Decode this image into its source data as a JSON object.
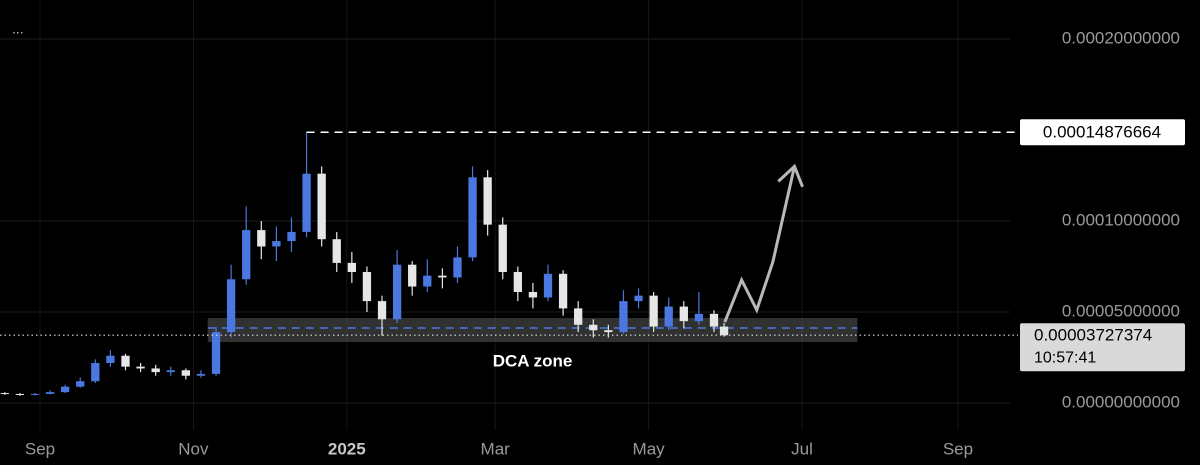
{
  "chart_data": {
    "type": "candlestick",
    "menu": "...",
    "x": [
      -14,
      -8,
      -2,
      4,
      10,
      16,
      22,
      28,
      34,
      40,
      46,
      52,
      58,
      64,
      70,
      76,
      82,
      88,
      94,
      100,
      106,
      112,
      118,
      124,
      130,
      136,
      142,
      148,
      154,
      160,
      166,
      172,
      178,
      184,
      190,
      196,
      202,
      208,
      214,
      220,
      226,
      232,
      238,
      244,
      250,
      256,
      262,
      268,
      272
    ],
    "open": [
      5.5e-06,
      5e-06,
      4.5e-06,
      5e-06,
      6e-06,
      9e-06,
      1.2e-05,
      2.2e-05,
      2.6e-05,
      2e-05,
      1.9e-05,
      1.7e-05,
      1.8e-05,
      1.5e-05,
      1.6e-05,
      3.9e-05,
      6.8e-05,
      9.5e-05,
      8.6e-05,
      8.9e-05,
      9.4e-05,
      0.000126,
      9e-05,
      7.7e-05,
      7.2e-05,
      5.6e-05,
      4.6e-05,
      7.6e-05,
      6.4e-05,
      7e-05,
      6.9e-05,
      8e-05,
      0.000124,
      9.8e-05,
      7.2e-05,
      6.1e-05,
      5.8e-05,
      7.1e-05,
      5.2e-05,
      4.3e-05,
      4e-05,
      3.9e-05,
      5.6e-05,
      5.9e-05,
      4.2e-05,
      5.3e-05,
      4.5e-05,
      4.9e-05,
      4.2e-05
    ],
    "high": [
      6e-06,
      5.5e-06,
      5.5e-06,
      7e-06,
      1e-05,
      1.4e-05,
      2.4e-05,
      2.9e-05,
      2.7e-05,
      2.2e-05,
      2.1e-05,
      2e-05,
      1.9e-05,
      1.8e-05,
      4.2e-05,
      7.6e-05,
      0.000108,
      0.0001,
      9.7e-05,
      0.000102,
      0.00014876664,
      0.00013,
      9.4e-05,
      8.3e-05,
      7.5e-05,
      5.9e-05,
      8.4e-05,
      7.8e-05,
      7.9e-05,
      7.4e-05,
      8.6e-05,
      0.00013,
      0.000128,
      0.000102,
      7.5e-05,
      6.6e-05,
      7.6e-05,
      7.3e-05,
      5.6e-05,
      4.6e-05,
      4.3e-05,
      6.2e-05,
      6.3e-05,
      6.1e-05,
      5.8e-05,
      5.6e-05,
      6.1e-05,
      5.1e-05,
      4.4e-05
    ],
    "low": [
      4.5e-06,
      4e-06,
      4.2e-06,
      4.8e-06,
      5.5e-06,
      8.5e-06,
      1.1e-05,
      2e-05,
      1.8e-05,
      1.7e-05,
      1.5e-05,
      1.5e-05,
      1.3e-05,
      1.4e-05,
      1.5e-05,
      3.6e-05,
      6.5e-05,
      7.9e-05,
      7.8e-05,
      8.3e-05,
      9.1e-05,
      8.6e-05,
      7.2e-05,
      6.6e-05,
      5e-05,
      3.7e-05,
      4.4e-05,
      5.9e-05,
      6.1e-05,
      6.3e-05,
      6.6e-05,
      7.8e-05,
      9.2e-05,
      6.8e-05,
      5.6e-05,
      5.2e-05,
      5.6e-05,
      4.8e-05,
      3.9e-05,
      3.6e-05,
      3.6e-05,
      3.8e-05,
      5.2e-05,
      3.9e-05,
      4e-05,
      4.1e-05,
      4.3e-05,
      3.9e-05,
      3.65e-05
    ],
    "close": [
      5e-06,
      4.5e-06,
      5e-06,
      6e-06,
      9e-06,
      1.2e-05,
      2.2e-05,
      2.6e-05,
      2e-05,
      1.9e-05,
      1.7e-05,
      1.8e-05,
      1.5e-05,
      1.6e-05,
      3.9e-05,
      6.8e-05,
      9.5e-05,
      8.6e-05,
      8.9e-05,
      9.4e-05,
      0.000126,
      9e-05,
      7.7e-05,
      7.2e-05,
      5.6e-05,
      4.6e-05,
      7.6e-05,
      6.4e-05,
      7e-05,
      6.9e-05,
      8e-05,
      0.000124,
      9.8e-05,
      7.2e-05,
      6.1e-05,
      5.8e-05,
      7.1e-05,
      5.2e-05,
      4.3e-05,
      4e-05,
      3.9e-05,
      5.6e-05,
      5.9e-05,
      4.2e-05,
      5.3e-05,
      4.5e-05,
      4.9e-05,
      4.2e-05,
      3.727374e-05
    ],
    "up_color": "#4a78e0",
    "down_color": "#e6e6e6",
    "xlim": [
      -15.9,
      385.7
    ],
    "xticks": [
      {
        "value": 0,
        "label": "Sep"
      },
      {
        "value": 61,
        "label": "Nov"
      },
      {
        "value": 122,
        "label": "2025"
      },
      {
        "value": 181,
        "label": "Mar"
      },
      {
        "value": 242,
        "label": "May"
      },
      {
        "value": 303,
        "label": "Jul"
      },
      {
        "value": 365,
        "label": "Sep"
      }
    ],
    "ylim": [
      -1.48e-05,
      0.0002214
    ],
    "yticks": [
      {
        "value": 0,
        "label": "0.00000000000"
      },
      {
        "value": 5e-05,
        "label": "0.00005000000"
      },
      {
        "value": 0.0001,
        "label": "0.00010000000"
      },
      {
        "value": 0.0002,
        "label": "0.00020000000"
      }
    ],
    "grid": true,
    "peak": {
      "value": 0.00014876664,
      "label": "0.00014876664",
      "start": 106
    },
    "last_price": {
      "value": 3.727374e-05,
      "label": "0.00003727374",
      "countdown": "10:57:41"
    },
    "dca_zone": {
      "label": "DCA zone",
      "low": 3.35e-05,
      "high": 4.67e-05,
      "line": 4.12e-05,
      "start": 66.7,
      "end": 325
    },
    "projection": {
      "x": [
        272.3,
        279,
        285,
        291.4,
        300
      ],
      "values": [
        4.45e-05,
        6.76e-05,
        5.11e-05,
        7.75e-05,
        0.00013
      ],
      "color": "#b8b8b8"
    }
  }
}
